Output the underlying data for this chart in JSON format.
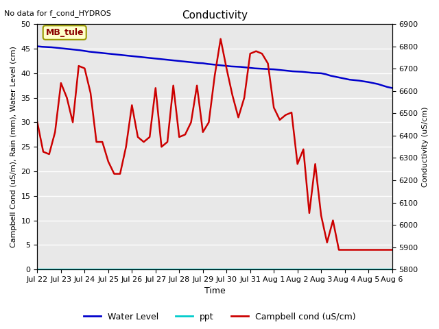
{
  "title": "Conductivity",
  "top_left_text": "No data for f_cond_HYDROS",
  "site_label": "MB_tule",
  "xlabel": "Time",
  "ylabel_left": "Campbell Cond (uS/m), Rain (mm), Water Level (cm)",
  "ylabel_right": "Conductivity (uS/cm)",
  "ylim_left": [
    0,
    50
  ],
  "ylim_right": [
    5800,
    6900
  ],
  "bg_color": "#e8e8e8",
  "grid_color": "white",
  "x_tick_labels": [
    "Jul 22",
    "Jul 23",
    "Jul 24",
    "Jul 25",
    "Jul 26",
    "Jul 27",
    "Jul 28",
    "Jul 29",
    "Jul 30",
    "Jul 31",
    "Aug 1",
    "Aug 2",
    "Aug 3",
    "Aug 4",
    "Aug 5",
    "Aug 6"
  ],
  "water_level_x": [
    0,
    0.2,
    0.4,
    0.6,
    0.8,
    1.0,
    1.2,
    1.4,
    1.6,
    1.8,
    2.0,
    2.2,
    2.4,
    2.6,
    2.8,
    3.0,
    3.2,
    3.4,
    3.6,
    3.8,
    4.0,
    4.2,
    4.4,
    4.6,
    4.8,
    5.0,
    5.2,
    5.4,
    5.6,
    5.8,
    6.0,
    6.2,
    6.4,
    6.6,
    6.8,
    7.0,
    7.2,
    7.4,
    7.6,
    7.8,
    8.0,
    8.2,
    8.4,
    8.6,
    8.8,
    9.0,
    9.2,
    9.4,
    9.6,
    9.8,
    10.0,
    10.2,
    10.4,
    10.6,
    10.8,
    11.0,
    11.2,
    11.4,
    11.6,
    11.8,
    12.0,
    12.2,
    12.4,
    12.6,
    12.8,
    13.0,
    13.2,
    13.4,
    13.6,
    13.8,
    14.0,
    14.2,
    14.4,
    14.6,
    14.8,
    15.0
  ],
  "water_level_y": [
    45.5,
    45.4,
    45.35,
    45.3,
    45.2,
    45.1,
    45.0,
    44.9,
    44.8,
    44.7,
    44.55,
    44.4,
    44.3,
    44.2,
    44.1,
    44.0,
    43.9,
    43.8,
    43.7,
    43.6,
    43.5,
    43.4,
    43.3,
    43.2,
    43.1,
    43.0,
    42.9,
    42.8,
    42.7,
    42.6,
    42.5,
    42.4,
    42.3,
    42.2,
    42.1,
    42.05,
    41.9,
    41.8,
    41.7,
    41.6,
    41.5,
    41.4,
    41.35,
    41.3,
    41.2,
    41.1,
    41.0,
    40.95,
    40.9,
    40.85,
    40.8,
    40.7,
    40.6,
    40.5,
    40.4,
    40.35,
    40.3,
    40.2,
    40.1,
    40.05,
    40.0,
    39.8,
    39.5,
    39.3,
    39.1,
    38.9,
    38.7,
    38.6,
    38.5,
    38.35,
    38.2,
    38.0,
    37.8,
    37.5,
    37.2,
    37.0
  ],
  "campbell_x": [
    0,
    0.25,
    0.5,
    0.75,
    1.0,
    1.25,
    1.5,
    1.75,
    2.0,
    2.25,
    2.5,
    2.75,
    3.0,
    3.25,
    3.5,
    3.75,
    4.0,
    4.25,
    4.5,
    4.75,
    5.0,
    5.25,
    5.5,
    5.75,
    6.0,
    6.25,
    6.5,
    6.75,
    7.0,
    7.25,
    7.5,
    7.75,
    8.0,
    8.25,
    8.5,
    8.75,
    9.0,
    9.25,
    9.5,
    9.75,
    10.0,
    10.25,
    10.5,
    10.75,
    11.0,
    11.25,
    11.5,
    11.75,
    12.0,
    12.25,
    12.5,
    12.75,
    13.0,
    13.25,
    13.5,
    13.75,
    14.0,
    14.25,
    14.5,
    14.75,
    15.0
  ],
  "campbell_y": [
    30,
    24,
    23.5,
    28,
    38,
    35,
    30,
    41.5,
    41,
    36,
    26,
    26,
    22,
    19.5,
    19.5,
    25,
    33.5,
    27,
    26,
    27,
    37,
    25,
    26,
    37.5,
    27,
    27.5,
    30,
    37.5,
    28,
    30,
    39.5,
    47,
    41,
    35.5,
    31,
    35,
    44,
    44.5,
    44,
    42,
    33,
    30.5,
    31.5,
    32,
    21.5,
    24.5,
    11.5,
    21.5,
    11,
    5.5,
    10,
    4,
    4,
    4,
    4,
    4,
    4,
    4,
    4,
    4,
    4
  ],
  "water_level_color": "#0000cc",
  "campbell_cond_color": "#cc0000",
  "ppt_color": "#00cccc",
  "legend_entries": [
    "Water Level",
    "ppt",
    "Campbell cond (uS/cm)"
  ],
  "title_fontsize": 11,
  "axis_fontsize": 8,
  "label_fontsize": 8
}
